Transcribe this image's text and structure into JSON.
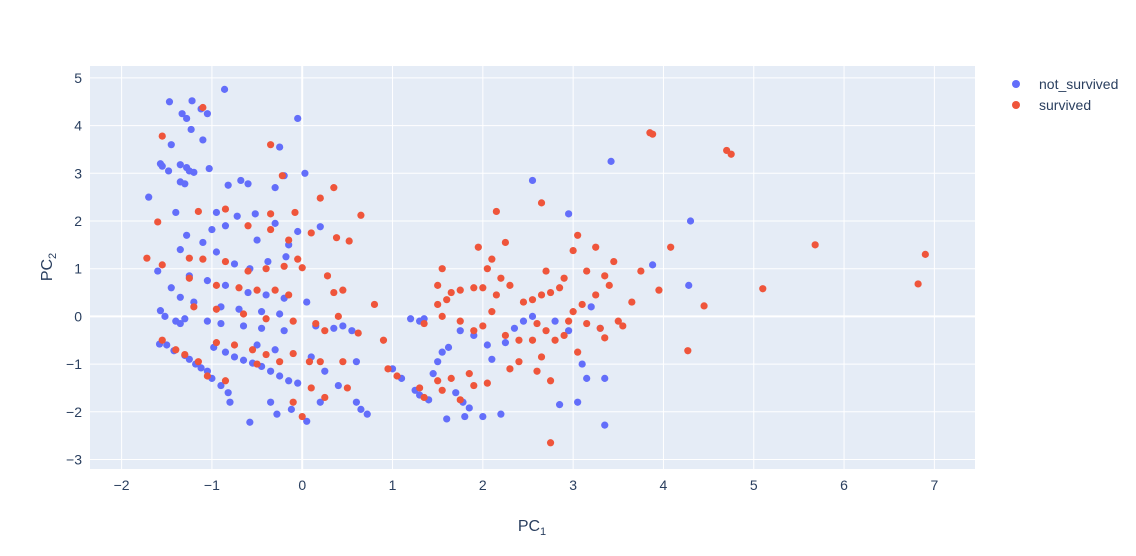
{
  "chart_data": {
    "type": "scatter",
    "xlabel": "PC",
    "xlabel_sub": "1",
    "ylabel": "PC",
    "ylabel_sub": "2",
    "xlim": [
      -2.35,
      7.45
    ],
    "ylim": [
      -3.2,
      5.25
    ],
    "grid": true,
    "legend_position": "top-right",
    "x_ticks": [
      -2,
      -1,
      0,
      1,
      2,
      3,
      4,
      5,
      6,
      7
    ],
    "y_ticks": [
      -3,
      -2,
      -1,
      0,
      1,
      2,
      3,
      4,
      5
    ],
    "x_tick_labels": [
      "−2",
      "−1",
      "0",
      "1",
      "2",
      "3",
      "4",
      "5",
      "6",
      "7"
    ],
    "y_tick_labels": [
      "−3",
      "−2",
      "−1",
      "0",
      "1",
      "2",
      "3",
      "4",
      "5"
    ],
    "series": [
      {
        "name": "not_survived",
        "color": "#636efa",
        "points": [
          [
            -1.47,
            4.5
          ],
          [
            -1.22,
            4.52
          ],
          [
            -0.86,
            4.76
          ],
          [
            -1.33,
            4.25
          ],
          [
            -1.28,
            4.15
          ],
          [
            -1.12,
            4.35
          ],
          [
            -1.05,
            4.25
          ],
          [
            -1.23,
            3.92
          ],
          [
            -0.05,
            4.15
          ],
          [
            -1.57,
            3.2
          ],
          [
            -1.55,
            3.15
          ],
          [
            -1.48,
            3.05
          ],
          [
            -1.35,
            3.18
          ],
          [
            -1.28,
            3.12
          ],
          [
            -1.25,
            3.05
          ],
          [
            -1.2,
            3.02
          ],
          [
            -1.03,
            3.1
          ],
          [
            -1.35,
            2.82
          ],
          [
            -1.3,
            2.78
          ],
          [
            -1.1,
            3.7
          ],
          [
            -1.45,
            3.6
          ],
          [
            -0.25,
            3.55
          ],
          [
            -1.7,
            2.5
          ],
          [
            -0.68,
            2.85
          ],
          [
            -0.6,
            2.78
          ],
          [
            -0.82,
            2.75
          ],
          [
            -0.3,
            2.7
          ],
          [
            -0.2,
            2.95
          ],
          [
            0.03,
            3.0
          ],
          [
            -1.4,
            2.18
          ],
          [
            -0.95,
            2.18
          ],
          [
            -0.72,
            2.1
          ],
          [
            -0.52,
            2.15
          ],
          [
            0.2,
            1.88
          ],
          [
            -0.3,
            1.95
          ],
          [
            -0.05,
            1.78
          ],
          [
            -1.0,
            1.82
          ],
          [
            -1.28,
            1.7
          ],
          [
            -0.85,
            1.9
          ],
          [
            -0.5,
            1.6
          ],
          [
            -0.15,
            1.5
          ],
          [
            -1.1,
            1.55
          ],
          [
            -1.35,
            1.4
          ],
          [
            -0.95,
            1.35
          ],
          [
            -0.75,
            1.1
          ],
          [
            -0.58,
            1.0
          ],
          [
            -0.38,
            1.15
          ],
          [
            -0.18,
            1.25
          ],
          [
            -1.25,
            0.85
          ],
          [
            -1.6,
            0.95
          ],
          [
            -1.05,
            0.75
          ],
          [
            -0.85,
            0.65
          ],
          [
            -0.6,
            0.5
          ],
          [
            -0.4,
            0.45
          ],
          [
            -0.2,
            0.38
          ],
          [
            0.05,
            0.3
          ],
          [
            -1.45,
            0.6
          ],
          [
            -1.35,
            0.4
          ],
          [
            -1.2,
            0.3
          ],
          [
            -0.9,
            0.2
          ],
          [
            -0.7,
            0.15
          ],
          [
            -0.45,
            0.1
          ],
          [
            -0.25,
            0.05
          ],
          [
            -1.57,
            0.12
          ],
          [
            -1.52,
            0.0
          ],
          [
            -1.3,
            -0.05
          ],
          [
            -1.05,
            -0.1
          ],
          [
            -0.9,
            -0.15
          ],
          [
            -0.65,
            -0.2
          ],
          [
            -0.45,
            -0.25
          ],
          [
            -0.2,
            -0.3
          ],
          [
            0.15,
            -0.2
          ],
          [
            0.35,
            -0.25
          ],
          [
            0.55,
            -0.3
          ],
          [
            -1.4,
            -0.1
          ],
          [
            -1.35,
            -0.15
          ],
          [
            -1.58,
            -0.58
          ],
          [
            -1.5,
            -0.6
          ],
          [
            -1.42,
            -0.72
          ],
          [
            -1.3,
            -0.82
          ],
          [
            -1.25,
            -0.9
          ],
          [
            -1.18,
            -1.0
          ],
          [
            -1.12,
            -1.08
          ],
          [
            -1.05,
            -1.15
          ],
          [
            -0.98,
            -0.65
          ],
          [
            -0.85,
            -0.75
          ],
          [
            -0.75,
            -0.85
          ],
          [
            -0.65,
            -0.92
          ],
          [
            -0.55,
            -0.98
          ],
          [
            -0.45,
            -1.05
          ],
          [
            -0.35,
            -1.15
          ],
          [
            -0.25,
            -1.25
          ],
          [
            -0.15,
            -1.35
          ],
          [
            -0.05,
            -1.4
          ],
          [
            -1.0,
            -1.3
          ],
          [
            -0.9,
            -1.45
          ],
          [
            -0.82,
            -1.6
          ],
          [
            -0.8,
            -1.8
          ],
          [
            -0.58,
            -2.22
          ],
          [
            -0.28,
            -2.05
          ],
          [
            -0.12,
            -1.95
          ],
          [
            0.05,
            -2.2
          ],
          [
            -0.35,
            -1.8
          ],
          [
            0.2,
            -1.8
          ],
          [
            0.6,
            -1.8
          ],
          [
            0.65,
            -1.95
          ],
          [
            0.72,
            -2.05
          ],
          [
            0.4,
            -1.45
          ],
          [
            0.25,
            -1.15
          ],
          [
            0.1,
            -0.85
          ],
          [
            -0.3,
            -0.7
          ],
          [
            -0.5,
            -0.6
          ],
          [
            0.45,
            -0.2
          ],
          [
            0.6,
            -0.95
          ],
          [
            1.0,
            -1.1
          ],
          [
            1.1,
            -1.3
          ],
          [
            1.25,
            -1.55
          ],
          [
            1.3,
            -1.65
          ],
          [
            1.4,
            -1.75
          ],
          [
            1.45,
            -1.2
          ],
          [
            1.5,
            -0.95
          ],
          [
            1.55,
            -0.75
          ],
          [
            1.62,
            -0.65
          ],
          [
            1.7,
            -1.6
          ],
          [
            1.78,
            -1.8
          ],
          [
            1.85,
            -1.92
          ],
          [
            1.6,
            -2.15
          ],
          [
            1.8,
            -2.1
          ],
          [
            2.0,
            -2.1
          ],
          [
            2.2,
            -2.05
          ],
          [
            1.75,
            -0.3
          ],
          [
            1.9,
            -0.4
          ],
          [
            2.05,
            -0.6
          ],
          [
            2.1,
            -0.9
          ],
          [
            2.25,
            -0.55
          ],
          [
            2.35,
            -0.25
          ],
          [
            2.45,
            -0.1
          ],
          [
            2.55,
            0.0
          ],
          [
            1.2,
            -0.05
          ],
          [
            1.3,
            -0.1
          ],
          [
            1.35,
            -0.05
          ],
          [
            2.55,
            2.85
          ],
          [
            2.95,
            2.15
          ],
          [
            3.42,
            3.25
          ],
          [
            4.3,
            2.0
          ],
          [
            3.88,
            1.08
          ],
          [
            4.28,
            0.65
          ],
          [
            3.1,
            -1.0
          ],
          [
            3.15,
            -1.3
          ],
          [
            3.05,
            -1.8
          ],
          [
            3.35,
            -1.3
          ],
          [
            3.35,
            -2.28
          ],
          [
            2.85,
            -1.85
          ],
          [
            2.95,
            -0.3
          ],
          [
            2.8,
            -0.1
          ],
          [
            3.2,
            0.2
          ],
          [
            3.3,
            -0.25
          ]
        ]
      },
      {
        "name": "survived",
        "color": "#ef553b",
        "points": [
          [
            -1.55,
            3.78
          ],
          [
            -1.1,
            4.38
          ],
          [
            -0.35,
            3.6
          ],
          [
            -0.22,
            2.95
          ],
          [
            0.35,
            2.7
          ],
          [
            0.2,
            2.48
          ],
          [
            -0.85,
            2.25
          ],
          [
            -0.35,
            2.15
          ],
          [
            -0.08,
            2.18
          ],
          [
            0.65,
            2.12
          ],
          [
            -1.6,
            1.98
          ],
          [
            -1.15,
            2.2
          ],
          [
            -0.6,
            1.9
          ],
          [
            -0.35,
            1.82
          ],
          [
            -0.15,
            1.6
          ],
          [
            0.1,
            1.75
          ],
          [
            0.38,
            1.65
          ],
          [
            0.52,
            1.58
          ],
          [
            -0.05,
            1.2
          ],
          [
            -1.72,
            1.22
          ],
          [
            -1.55,
            1.08
          ],
          [
            -1.25,
            1.22
          ],
          [
            -1.1,
            1.2
          ],
          [
            -0.85,
            1.15
          ],
          [
            -0.6,
            0.95
          ],
          [
            -0.4,
            1.0
          ],
          [
            -0.2,
            1.05
          ],
          [
            0.0,
            1.02
          ],
          [
            0.28,
            0.85
          ],
          [
            -1.25,
            0.8
          ],
          [
            -0.95,
            0.65
          ],
          [
            -0.7,
            0.6
          ],
          [
            -0.5,
            0.55
          ],
          [
            -0.3,
            0.55
          ],
          [
            -0.15,
            0.45
          ],
          [
            0.35,
            0.5
          ],
          [
            0.45,
            0.55
          ],
          [
            0.8,
            0.25
          ],
          [
            -1.2,
            0.2
          ],
          [
            -0.95,
            0.15
          ],
          [
            -0.65,
            0.05
          ],
          [
            -0.4,
            -0.05
          ],
          [
            -0.1,
            -0.1
          ],
          [
            0.15,
            -0.15
          ],
          [
            0.25,
            -0.3
          ],
          [
            0.4,
            0.0
          ],
          [
            0.62,
            -0.35
          ],
          [
            0.9,
            -0.5
          ],
          [
            -1.55,
            -0.5
          ],
          [
            -1.4,
            -0.7
          ],
          [
            -1.3,
            -0.8
          ],
          [
            -1.15,
            -0.95
          ],
          [
            -0.95,
            -0.55
          ],
          [
            -0.75,
            -0.6
          ],
          [
            -0.55,
            -0.7
          ],
          [
            -0.4,
            -0.8
          ],
          [
            -0.25,
            -0.95
          ],
          [
            -0.1,
            -0.78
          ],
          [
            0.08,
            -0.95
          ],
          [
            0.2,
            -0.95
          ],
          [
            0.45,
            -0.95
          ],
          [
            0.5,
            -1.5
          ],
          [
            0.25,
            -1.7
          ],
          [
            0.1,
            -1.5
          ],
          [
            -0.1,
            -1.8
          ],
          [
            0.0,
            -2.1
          ],
          [
            -0.5,
            -1.0
          ],
          [
            -0.85,
            -1.35
          ],
          [
            -1.05,
            -1.25
          ],
          [
            0.95,
            -1.1
          ],
          [
            1.05,
            -1.25
          ],
          [
            1.3,
            -1.5
          ],
          [
            1.35,
            -1.7
          ],
          [
            1.55,
            -1.55
          ],
          [
            1.65,
            -1.3
          ],
          [
            1.5,
            -1.35
          ],
          [
            1.85,
            -1.2
          ],
          [
            1.9,
            -1.45
          ],
          [
            2.05,
            -1.4
          ],
          [
            1.75,
            -1.75
          ],
          [
            1.35,
            -0.15
          ],
          [
            1.55,
            0.0
          ],
          [
            1.75,
            -0.1
          ],
          [
            1.9,
            -0.3
          ],
          [
            1.5,
            0.25
          ],
          [
            1.6,
            0.35
          ],
          [
            1.65,
            0.5
          ],
          [
            1.5,
            0.65
          ],
          [
            1.55,
            1.0
          ],
          [
            1.75,
            0.55
          ],
          [
            1.9,
            0.6
          ],
          [
            2.0,
            0.6
          ],
          [
            2.05,
            1.0
          ],
          [
            2.1,
            1.2
          ],
          [
            2.2,
            0.8
          ],
          [
            2.3,
            0.65
          ],
          [
            2.45,
            0.3
          ],
          [
            2.55,
            0.35
          ],
          [
            2.65,
            0.45
          ],
          [
            2.75,
            0.5
          ],
          [
            2.85,
            0.6
          ],
          [
            2.6,
            -0.15
          ],
          [
            2.7,
            -0.3
          ],
          [
            2.9,
            -0.4
          ],
          [
            2.0,
            -0.2
          ],
          [
            2.1,
            0.1
          ],
          [
            2.15,
            0.45
          ],
          [
            2.25,
            -0.4
          ],
          [
            2.4,
            -0.5
          ],
          [
            2.55,
            -0.5
          ],
          [
            2.4,
            -0.95
          ],
          [
            2.65,
            -0.85
          ],
          [
            2.75,
            -1.35
          ],
          [
            2.75,
            -2.65
          ],
          [
            2.6,
            -1.15
          ],
          [
            2.3,
            -1.1
          ],
          [
            1.95,
            1.45
          ],
          [
            2.25,
            1.55
          ],
          [
            2.15,
            2.2
          ],
          [
            2.65,
            2.38
          ],
          [
            2.7,
            0.95
          ],
          [
            2.9,
            0.8
          ],
          [
            3.0,
            1.38
          ],
          [
            3.05,
            1.7
          ],
          [
            3.15,
            0.95
          ],
          [
            3.25,
            1.45
          ],
          [
            3.35,
            0.85
          ],
          [
            3.45,
            1.15
          ],
          [
            3.4,
            0.65
          ],
          [
            3.25,
            0.45
          ],
          [
            3.1,
            0.25
          ],
          [
            3.0,
            0.1
          ],
          [
            2.95,
            -0.1
          ],
          [
            3.15,
            -0.15
          ],
          [
            3.3,
            -0.25
          ],
          [
            3.5,
            -0.1
          ],
          [
            3.55,
            -0.2
          ],
          [
            3.65,
            0.3
          ],
          [
            3.75,
            0.95
          ],
          [
            3.95,
            0.55
          ],
          [
            4.08,
            1.45
          ],
          [
            3.85,
            3.85
          ],
          [
            3.88,
            3.82
          ],
          [
            4.7,
            3.48
          ],
          [
            4.75,
            3.4
          ],
          [
            5.68,
            1.5
          ],
          [
            6.9,
            1.3
          ],
          [
            6.82,
            0.68
          ],
          [
            5.1,
            0.58
          ],
          [
            4.45,
            0.22
          ],
          [
            4.27,
            -0.72
          ],
          [
            3.05,
            -0.75
          ],
          [
            3.35,
            -0.45
          ],
          [
            2.8,
            -0.5
          ]
        ]
      }
    ]
  }
}
